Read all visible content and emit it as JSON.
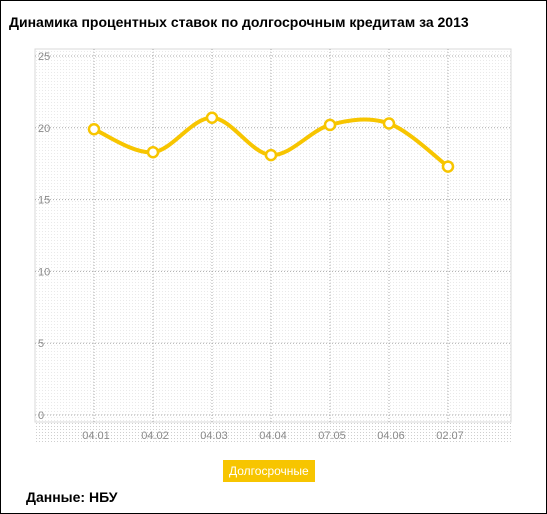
{
  "chart_data": {
    "type": "line",
    "title": "Динамика процентных ставок по долгосрочным кредитам за 2013",
    "categories": [
      "04.01",
      "04.02",
      "04.03",
      "04.04",
      "07.05",
      "04.06",
      "02.07"
    ],
    "series": [
      {
        "name": "Долгосрочные",
        "values": [
          19.9,
          18.3,
          20.7,
          18.1,
          20.2,
          20.3,
          17.3
        ]
      }
    ],
    "ylim": [
      0,
      25
    ],
    "yticks": [
      0,
      5,
      10,
      15,
      20,
      25
    ],
    "grid": true,
    "line_color": "#f7c500",
    "legend_position": "bottom-center"
  },
  "source_label": "Данные: НБУ"
}
